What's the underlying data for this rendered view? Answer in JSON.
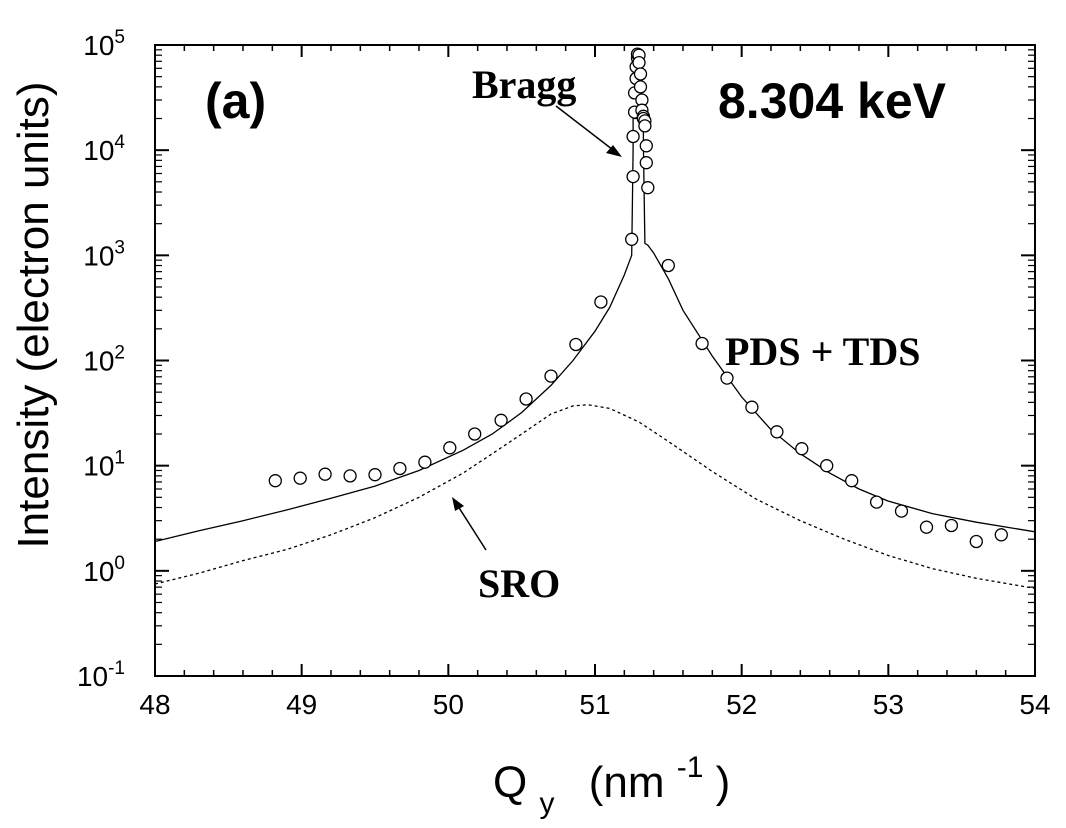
{
  "chart_data": {
    "type": "scatter",
    "panel_label": "(a)",
    "energy_label": "8.304 keV",
    "xlabel_main": "Q",
    "xlabel_sub": "y",
    "xlabel_unit_open": "(nm",
    "xlabel_unit_exp": "-1",
    "xlabel_unit_close": ")",
    "ylabel": "Intensity (electron units)",
    "xlim": [
      48,
      54
    ],
    "ylim": [
      0.1,
      100000
    ],
    "yscale": "log",
    "grid": false,
    "x_ticks": [
      "48",
      "49",
      "50",
      "51",
      "52",
      "53",
      "54"
    ],
    "y_ticks": [
      {
        "base": "10",
        "exp": "-1"
      },
      {
        "base": "10",
        "exp": "0"
      },
      {
        "base": "10",
        "exp": "1"
      },
      {
        "base": "10",
        "exp": "2"
      },
      {
        "base": "10",
        "exp": "3"
      },
      {
        "base": "10",
        "exp": "4"
      },
      {
        "base": "10",
        "exp": "5"
      }
    ],
    "annotations": {
      "bragg": "Bragg",
      "pds_tds": "PDS + TDS",
      "sro": "SRO"
    },
    "measured_points": {
      "x": [
        48.82,
        48.99,
        49.16,
        49.33,
        49.5,
        49.67,
        49.84,
        50.01,
        50.18,
        50.36,
        50.53,
        50.7,
        50.87,
        51.04,
        51.25,
        51.26,
        51.26,
        51.27,
        51.27,
        51.28,
        51.28,
        51.29,
        51.29,
        51.3,
        51.3,
        51.31,
        51.31,
        51.32,
        51.32,
        51.33,
        51.33,
        51.34,
        51.34,
        51.35,
        51.35,
        51.36,
        51.5,
        51.73,
        51.9,
        52.07,
        52.24,
        52.41,
        52.58,
        52.75,
        52.92,
        53.09,
        53.26,
        53.43,
        53.6,
        53.77
      ],
      "y": [
        7.2,
        7.6,
        8.3,
        8.0,
        8.2,
        9.4,
        10.8,
        14.8,
        20,
        27,
        43,
        71,
        142,
        360,
        1420,
        5600,
        13500,
        23000,
        35000,
        48000,
        62000,
        75000,
        82000,
        80000,
        68000,
        53000,
        40000,
        30000,
        24000,
        21000,
        20000,
        19000,
        17000,
        11000,
        7600,
        4400,
        800,
        145,
        68,
        36,
        21,
        14.5,
        10,
        7.2,
        4.5,
        3.7,
        2.6,
        2.7,
        1.9,
        2.2
      ]
    },
    "series": [
      {
        "name": "PDS + TDS",
        "style": "solid",
        "x": [
          48.0,
          48.3,
          48.6,
          48.9,
          49.2,
          49.5,
          49.8,
          50.1,
          50.3,
          50.5,
          50.7,
          50.85,
          51.0,
          51.1,
          51.2,
          51.25,
          51.26,
          51.26,
          51.27,
          51.28,
          51.28,
          51.3,
          51.32,
          51.33,
          51.33,
          51.34,
          51.36,
          51.4,
          51.5,
          51.6,
          51.8,
          52.0,
          52.2,
          52.4,
          52.6,
          52.8,
          53.0,
          53.3,
          53.6,
          54.0
        ],
        "y": [
          1.9,
          2.4,
          3.0,
          3.8,
          4.9,
          6.4,
          9.0,
          14,
          20,
          32,
          58,
          100,
          190,
          320,
          650,
          1000,
          10000,
          20000,
          20000,
          20000,
          20000,
          20000,
          20000,
          20000,
          11000,
          1300,
          1250,
          1050,
          600,
          300,
          110,
          45,
          22,
          13,
          8.5,
          6.0,
          4.6,
          3.5,
          2.9,
          2.35
        ]
      },
      {
        "name": "SRO",
        "style": "dotted",
        "x": [
          48.0,
          48.3,
          48.6,
          48.9,
          49.2,
          49.5,
          49.8,
          50.1,
          50.3,
          50.5,
          50.7,
          50.85,
          50.95,
          51.1,
          51.3,
          51.5,
          51.8,
          52.1,
          52.4,
          52.7,
          53.0,
          53.3,
          53.6,
          54.0
        ],
        "y": [
          0.75,
          0.95,
          1.25,
          1.6,
          2.2,
          3.2,
          5.0,
          8.5,
          13,
          20,
          31,
          37,
          38,
          35,
          26,
          17,
          8.8,
          4.8,
          3.0,
          2.0,
          1.4,
          1.05,
          0.85,
          0.68
        ]
      }
    ]
  }
}
